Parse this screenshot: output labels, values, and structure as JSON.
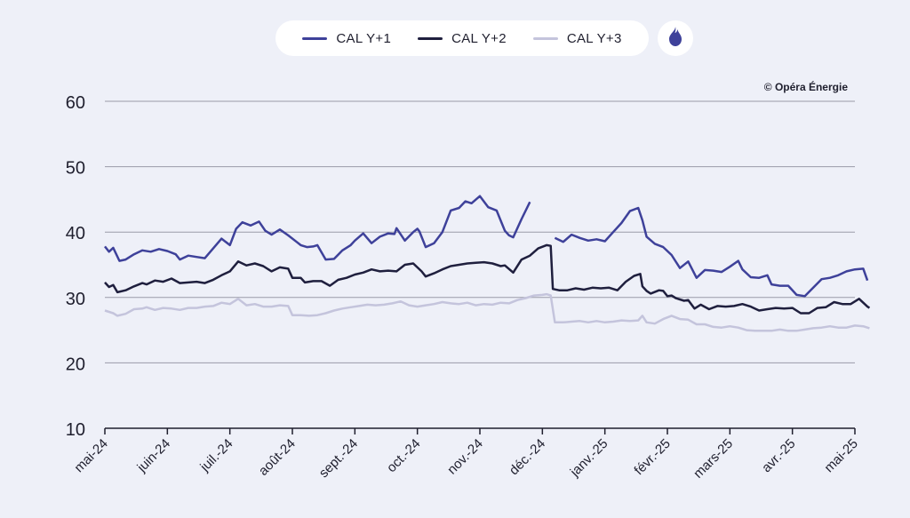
{
  "copyright": "© Opéra Énergie",
  "icons": {
    "flame": "flame-icon"
  },
  "colors": {
    "background": "#eef0f8",
    "grid": "#9a9aa8",
    "text": "#1f1f2e"
  },
  "chart_data": {
    "type": "line",
    "title": "",
    "xlabel": "",
    "ylabel": "",
    "ylim": [
      10,
      60
    ],
    "yticks": [
      10,
      20,
      30,
      40,
      50,
      60
    ],
    "grid": true,
    "legend_position": "top-center",
    "x_labels": [
      "mai-24",
      "juin-24",
      "juil.-24",
      "août-24",
      "sept.-24",
      "oct.-24",
      "nov.-24",
      "déc.-24",
      "janv.-25",
      "févr.-25",
      "mars-25",
      "avr.-25",
      "mai-25"
    ],
    "series": [
      {
        "name": "CAL Y+1",
        "color": "#3e419a",
        "points": [
          [
            0,
            37.8
          ],
          [
            0.1,
            37.0
          ],
          [
            0.2,
            37.6
          ],
          [
            0.35,
            35.6
          ],
          [
            0.5,
            35.8
          ],
          [
            0.7,
            36.6
          ],
          [
            0.9,
            37.2
          ],
          [
            1.1,
            37.0
          ],
          [
            1.3,
            37.4
          ],
          [
            1.5,
            37.1
          ],
          [
            1.7,
            36.6
          ],
          [
            1.8,
            35.8
          ],
          [
            2.0,
            36.4
          ],
          [
            2.2,
            36.2
          ],
          [
            2.4,
            36.0
          ],
          [
            2.6,
            37.5
          ],
          [
            2.8,
            39.0
          ],
          [
            3.0,
            38.0
          ],
          [
            3.15,
            40.5
          ],
          [
            3.3,
            41.5
          ],
          [
            3.5,
            41.0
          ],
          [
            3.7,
            41.6
          ],
          [
            3.85,
            40.2
          ],
          [
            4.0,
            39.6
          ],
          [
            4.2,
            40.4
          ],
          [
            4.4,
            39.5
          ],
          [
            4.6,
            38.5
          ],
          [
            4.7,
            38.0
          ],
          [
            4.85,
            37.7
          ],
          [
            5.0,
            37.8
          ],
          [
            5.1,
            38.0
          ],
          [
            5.3,
            35.8
          ],
          [
            5.5,
            35.9
          ],
          [
            5.7,
            37.2
          ],
          [
            5.9,
            38.0
          ],
          [
            6.0,
            38.7
          ],
          [
            6.2,
            39.8
          ],
          [
            6.4,
            38.3
          ],
          [
            6.6,
            39.3
          ],
          [
            6.8,
            39.8
          ],
          [
            6.95,
            39.7
          ],
          [
            7.0,
            40.6
          ],
          [
            7.2,
            38.7
          ],
          [
            7.4,
            40.0
          ],
          [
            7.5,
            40.5
          ],
          [
            7.55,
            40.1
          ],
          [
            7.7,
            37.7
          ],
          [
            7.9,
            38.3
          ],
          [
            8.1,
            40.0
          ],
          [
            8.3,
            43.3
          ],
          [
            8.5,
            43.7
          ],
          [
            8.65,
            44.7
          ],
          [
            8.8,
            44.4
          ],
          [
            9.0,
            45.5
          ],
          [
            9.2,
            43.8
          ],
          [
            9.4,
            43.3
          ],
          [
            9.6,
            40.2
          ],
          [
            9.7,
            39.5
          ],
          [
            9.8,
            39.2
          ],
          [
            10.0,
            42.0
          ],
          [
            10.2,
            44.6
          ]
        ],
        "segments2": [
          [
            10.8,
            39.1
          ],
          [
            11.0,
            38.5
          ],
          [
            11.2,
            39.6
          ],
          [
            11.4,
            39.1
          ],
          [
            11.6,
            38.7
          ],
          [
            11.8,
            38.9
          ],
          [
            12.0,
            38.6
          ],
          [
            12.2,
            40.0
          ],
          [
            12.4,
            41.4
          ],
          [
            12.6,
            43.2
          ],
          [
            12.8,
            43.7
          ],
          [
            12.9,
            41.8
          ],
          [
            13.0,
            39.3
          ],
          [
            13.2,
            38.2
          ],
          [
            13.4,
            37.7
          ],
          [
            13.6,
            36.5
          ],
          [
            13.8,
            34.5
          ],
          [
            14.0,
            35.5
          ],
          [
            14.2,
            33.0
          ],
          [
            14.4,
            34.2
          ],
          [
            14.6,
            34.1
          ],
          [
            14.8,
            33.9
          ],
          [
            15.0,
            34.7
          ],
          [
            15.2,
            35.6
          ],
          [
            15.3,
            34.3
          ],
          [
            15.5,
            33.1
          ],
          [
            15.7,
            33.0
          ],
          [
            15.9,
            33.4
          ],
          [
            16.0,
            32.0
          ],
          [
            16.2,
            31.8
          ],
          [
            16.4,
            31.8
          ],
          [
            16.6,
            30.4
          ],
          [
            16.8,
            30.2
          ],
          [
            17.0,
            31.5
          ],
          [
            17.2,
            32.8
          ],
          [
            17.4,
            33.0
          ],
          [
            17.6,
            33.4
          ],
          [
            17.8,
            34.0
          ],
          [
            18.0,
            34.3
          ],
          [
            18.2,
            34.4
          ],
          [
            18.3,
            32.6
          ]
        ]
      },
      {
        "name": "CAL Y+2",
        "color": "#1f1f3e",
        "points": [
          [
            0,
            32.3
          ],
          [
            0.1,
            31.6
          ],
          [
            0.2,
            31.9
          ],
          [
            0.3,
            30.8
          ],
          [
            0.5,
            31.1
          ],
          [
            0.7,
            31.7
          ],
          [
            0.9,
            32.2
          ],
          [
            1.0,
            32.0
          ],
          [
            1.2,
            32.6
          ],
          [
            1.4,
            32.4
          ],
          [
            1.6,
            32.9
          ],
          [
            1.8,
            32.2
          ],
          [
            2.0,
            32.3
          ],
          [
            2.2,
            32.4
          ],
          [
            2.4,
            32.2
          ],
          [
            2.6,
            32.7
          ],
          [
            2.8,
            33.4
          ],
          [
            3.0,
            34.0
          ],
          [
            3.2,
            35.5
          ],
          [
            3.4,
            34.9
          ],
          [
            3.6,
            35.2
          ],
          [
            3.8,
            34.8
          ],
          [
            4.0,
            34.0
          ],
          [
            4.2,
            34.6
          ],
          [
            4.4,
            34.4
          ],
          [
            4.5,
            33.0
          ],
          [
            4.7,
            33.0
          ],
          [
            4.8,
            32.3
          ],
          [
            5.0,
            32.5
          ],
          [
            5.2,
            32.5
          ],
          [
            5.4,
            31.8
          ],
          [
            5.6,
            32.7
          ],
          [
            5.8,
            33.0
          ],
          [
            6.0,
            33.5
          ],
          [
            6.2,
            33.8
          ],
          [
            6.4,
            34.3
          ],
          [
            6.6,
            34.0
          ],
          [
            6.8,
            34.1
          ],
          [
            7.0,
            34.0
          ],
          [
            7.2,
            35.0
          ],
          [
            7.4,
            35.2
          ],
          [
            7.6,
            34.0
          ],
          [
            7.7,
            33.2
          ],
          [
            7.9,
            33.7
          ],
          [
            8.1,
            34.3
          ],
          [
            8.3,
            34.8
          ],
          [
            8.5,
            35.0
          ],
          [
            8.7,
            35.2
          ],
          [
            8.9,
            35.3
          ],
          [
            9.1,
            35.4
          ],
          [
            9.3,
            35.2
          ],
          [
            9.5,
            34.8
          ],
          [
            9.6,
            34.9
          ],
          [
            9.8,
            33.8
          ],
          [
            10.0,
            35.8
          ],
          [
            10.2,
            36.4
          ],
          [
            10.4,
            37.5
          ],
          [
            10.6,
            38.0
          ],
          [
            10.7,
            37.9
          ],
          [
            10.75,
            31.3
          ],
          [
            10.9,
            31.1
          ],
          [
            11.1,
            31.1
          ],
          [
            11.3,
            31.4
          ],
          [
            11.5,
            31.2
          ],
          [
            11.7,
            31.5
          ],
          [
            11.9,
            31.4
          ],
          [
            12.1,
            31.5
          ],
          [
            12.3,
            31.1
          ],
          [
            12.5,
            32.4
          ],
          [
            12.7,
            33.3
          ],
          [
            12.85,
            33.6
          ],
          [
            12.9,
            31.7
          ],
          [
            13.0,
            31.0
          ],
          [
            13.1,
            30.6
          ],
          [
            13.3,
            31.1
          ],
          [
            13.4,
            31.0
          ],
          [
            13.5,
            30.2
          ],
          [
            13.6,
            30.3
          ],
          [
            13.7,
            29.9
          ],
          [
            13.9,
            29.5
          ],
          [
            14.0,
            29.6
          ],
          [
            14.15,
            28.3
          ],
          [
            14.3,
            28.9
          ],
          [
            14.5,
            28.2
          ],
          [
            14.7,
            28.7
          ],
          [
            14.9,
            28.6
          ],
          [
            15.1,
            28.7
          ],
          [
            15.3,
            29.0
          ],
          [
            15.5,
            28.6
          ],
          [
            15.7,
            28.0
          ],
          [
            15.9,
            28.2
          ],
          [
            16.1,
            28.4
          ],
          [
            16.3,
            28.3
          ],
          [
            16.5,
            28.4
          ],
          [
            16.7,
            27.6
          ],
          [
            16.9,
            27.6
          ],
          [
            17.1,
            28.4
          ],
          [
            17.3,
            28.5
          ],
          [
            17.5,
            29.3
          ],
          [
            17.7,
            29.0
          ],
          [
            17.9,
            29.0
          ],
          [
            18.1,
            29.8
          ],
          [
            18.3,
            28.6
          ],
          [
            18.35,
            28.4
          ]
        ]
      },
      {
        "name": "CAL Y+3",
        "color": "#c4c4dc",
        "points": [
          [
            0,
            28.0
          ],
          [
            0.2,
            27.6
          ],
          [
            0.3,
            27.2
          ],
          [
            0.5,
            27.5
          ],
          [
            0.7,
            28.2
          ],
          [
            0.9,
            28.3
          ],
          [
            1.0,
            28.5
          ],
          [
            1.2,
            28.1
          ],
          [
            1.4,
            28.4
          ],
          [
            1.6,
            28.3
          ],
          [
            1.8,
            28.1
          ],
          [
            2.0,
            28.4
          ],
          [
            2.2,
            28.4
          ],
          [
            2.4,
            28.6
          ],
          [
            2.6,
            28.7
          ],
          [
            2.8,
            29.2
          ],
          [
            3.0,
            29.0
          ],
          [
            3.2,
            29.8
          ],
          [
            3.4,
            28.8
          ],
          [
            3.6,
            29.0
          ],
          [
            3.8,
            28.6
          ],
          [
            4.0,
            28.6
          ],
          [
            4.2,
            28.8
          ],
          [
            4.4,
            28.7
          ],
          [
            4.5,
            27.3
          ],
          [
            4.7,
            27.3
          ],
          [
            4.9,
            27.2
          ],
          [
            5.1,
            27.3
          ],
          [
            5.3,
            27.6
          ],
          [
            5.5,
            28.0
          ],
          [
            5.7,
            28.3
          ],
          [
            5.9,
            28.5
          ],
          [
            6.1,
            28.7
          ],
          [
            6.3,
            28.9
          ],
          [
            6.5,
            28.8
          ],
          [
            6.7,
            28.9
          ],
          [
            6.9,
            29.1
          ],
          [
            7.1,
            29.4
          ],
          [
            7.3,
            28.8
          ],
          [
            7.5,
            28.6
          ],
          [
            7.7,
            28.8
          ],
          [
            7.9,
            29.0
          ],
          [
            8.1,
            29.3
          ],
          [
            8.3,
            29.1
          ],
          [
            8.5,
            29.0
          ],
          [
            8.7,
            29.2
          ],
          [
            8.9,
            28.8
          ],
          [
            9.1,
            29.0
          ],
          [
            9.3,
            28.9
          ],
          [
            9.5,
            29.2
          ],
          [
            9.7,
            29.1
          ],
          [
            9.9,
            29.6
          ],
          [
            10.1,
            29.9
          ],
          [
            10.3,
            30.3
          ],
          [
            10.5,
            30.4
          ],
          [
            10.6,
            30.5
          ],
          [
            10.7,
            30.3
          ],
          [
            10.8,
            26.2
          ],
          [
            11.0,
            26.2
          ],
          [
            11.2,
            26.3
          ],
          [
            11.4,
            26.4
          ],
          [
            11.6,
            26.2
          ],
          [
            11.8,
            26.4
          ],
          [
            12.0,
            26.2
          ],
          [
            12.2,
            26.3
          ],
          [
            12.4,
            26.5
          ],
          [
            12.6,
            26.4
          ],
          [
            12.8,
            26.5
          ],
          [
            12.9,
            27.2
          ],
          [
            13.0,
            26.2
          ],
          [
            13.2,
            26.0
          ],
          [
            13.4,
            26.7
          ],
          [
            13.6,
            27.2
          ],
          [
            13.8,
            26.7
          ],
          [
            14.0,
            26.6
          ],
          [
            14.2,
            25.9
          ],
          [
            14.4,
            25.9
          ],
          [
            14.6,
            25.5
          ],
          [
            14.8,
            25.4
          ],
          [
            15.0,
            25.6
          ],
          [
            15.2,
            25.4
          ],
          [
            15.4,
            25.0
          ],
          [
            15.6,
            24.9
          ],
          [
            15.8,
            24.9
          ],
          [
            16.0,
            24.9
          ],
          [
            16.2,
            25.1
          ],
          [
            16.4,
            24.9
          ],
          [
            16.6,
            24.9
          ],
          [
            16.8,
            25.1
          ],
          [
            17.0,
            25.3
          ],
          [
            17.2,
            25.4
          ],
          [
            17.4,
            25.6
          ],
          [
            17.6,
            25.4
          ],
          [
            17.8,
            25.4
          ],
          [
            18.0,
            25.7
          ],
          [
            18.2,
            25.6
          ],
          [
            18.35,
            25.3
          ]
        ]
      }
    ]
  }
}
